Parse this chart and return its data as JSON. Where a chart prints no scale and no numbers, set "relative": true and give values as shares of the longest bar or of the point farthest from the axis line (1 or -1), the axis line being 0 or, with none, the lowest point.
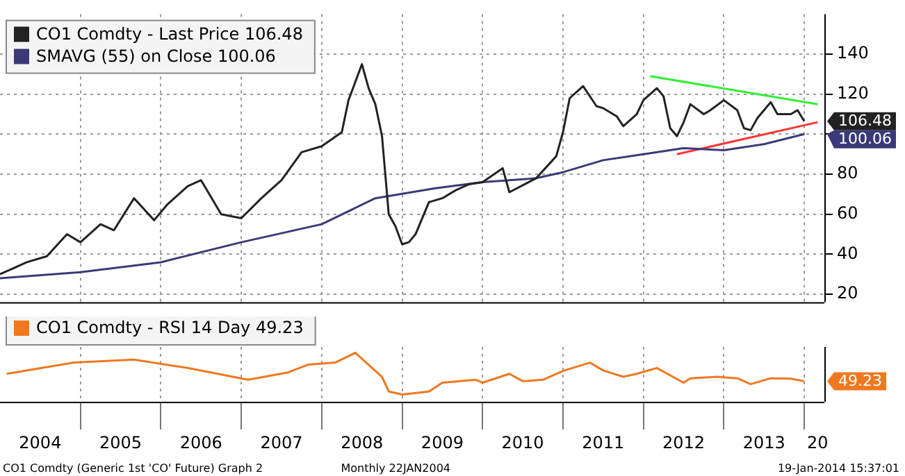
{
  "chart_data": [
    {
      "type": "line",
      "legend": "top left",
      "grid": true,
      "tick_labels": "y",
      "xlim": [
        "2004-01",
        "2014-04"
      ],
      "ylim": [
        16,
        160
      ],
      "xticks": [
        {
          "value": "2005-01",
          "label": null
        },
        {
          "value": "2006-01",
          "label": null
        },
        {
          "value": "2007-01",
          "label": null
        },
        {
          "value": "2008-01",
          "label": null
        },
        {
          "value": "2009-01",
          "label": null
        },
        {
          "value": "2010-01",
          "label": null
        },
        {
          "value": "2011-01",
          "label": null
        },
        {
          "value": "2012-01",
          "label": null
        },
        {
          "value": "2013-01",
          "label": null
        },
        {
          "value": "2014-01",
          "label": null
        }
      ],
      "yticks": [
        20,
        40,
        60,
        80,
        {
          "value": 100,
          "label": null
        },
        120,
        140
      ],
      "series": [
        {
          "name": "CO1 Comdty - Last Price 106.48",
          "color": "#222222",
          "x": [
            "2004-01",
            "2004-03",
            "2004-05",
            "2004-08",
            "2004-11",
            "2005-01",
            "2005-04",
            "2005-06",
            "2005-09",
            "2005-12",
            "2006-02",
            "2006-05",
            "2006-07",
            "2006-10",
            "2007-01",
            "2007-04",
            "2007-07",
            "2007-10",
            "2008-01",
            "2008-04",
            "2008-05",
            "2008-07",
            "2008-08",
            "2008-09",
            "2008-10",
            "2008-11",
            "2008-12",
            "2009-01",
            "2009-02",
            "2009-03",
            "2009-05",
            "2009-07",
            "2009-09",
            "2009-11",
            "2010-01",
            "2010-04",
            "2010-05",
            "2010-09",
            "2010-12",
            "2011-01",
            "2011-02",
            "2011-04",
            "2011-06",
            "2011-07",
            "2011-09",
            "2011-10",
            "2011-12",
            "2012-01",
            "2012-03",
            "2012-04",
            "2012-05",
            "2012-06",
            "2012-07",
            "2012-08",
            "2012-10",
            "2012-11",
            "2013-01",
            "2013-03",
            "2013-04",
            "2013-05",
            "2013-06",
            "2013-08",
            "2013-09",
            "2013-11",
            "2013-12",
            "2014-01"
          ],
          "values": [
            30,
            33,
            36,
            39,
            50,
            46,
            55,
            52,
            68,
            57,
            65,
            74,
            77,
            60,
            58,
            68,
            77,
            91,
            94,
            101,
            117,
            135,
            123,
            115,
            99,
            60,
            54,
            45,
            46,
            50,
            66,
            68,
            72,
            75,
            76,
            83,
            71,
            78,
            89,
            101,
            118,
            124,
            114,
            113,
            109,
            104,
            110,
            117,
            123,
            119,
            103,
            99,
            106,
            115,
            110,
            112,
            117,
            112,
            103,
            102,
            108,
            116,
            110,
            110,
            112,
            106.48
          ]
        },
        {
          "name": "SMAVG (55) on Close 100.06",
          "color": "#3a3a78",
          "x": [
            "2004-01",
            "2005-01",
            "2006-01",
            "2007-01",
            "2008-01",
            "2008-09",
            "2009-06",
            "2010-01",
            "2010-09",
            "2011-01",
            "2011-07",
            "2012-01",
            "2012-07",
            "2013-01",
            "2013-07",
            "2014-01"
          ],
          "values": [
            28,
            31,
            36,
            46,
            55,
            68,
            73,
            76,
            78,
            81,
            87,
            90,
            93,
            92,
            95,
            100.06
          ]
        },
        {
          "color": "#33ee33",
          "x": [
            "2012-02",
            "2014-03"
          ],
          "values": [
            129,
            115
          ]
        },
        {
          "color": "#ff3333",
          "x": [
            "2012-06",
            "2014-03"
          ],
          "values": [
            90,
            106
          ]
        }
      ],
      "annotations": [
        {
          "text": "106.48",
          "x": "2014-01",
          "y": 106.48
        },
        {
          "text": "100.06",
          "x": "2014-01",
          "y": 100.06
        }
      ]
    },
    {
      "type": "line",
      "relative": true,
      "legend": "top",
      "grid": "x",
      "xlim": [
        "2004-01",
        "2014-04"
      ],
      "xticks": [
        {
          "value": "2004-07",
          "label": "2004"
        },
        {
          "value": "2005-01",
          "label": null
        },
        {
          "value": "2005-07",
          "label": "2005"
        },
        {
          "value": "2006-01",
          "label": null
        },
        {
          "value": "2006-07",
          "label": "2006"
        },
        {
          "value": "2007-01",
          "label": null
        },
        {
          "value": "2007-07",
          "label": "2007"
        },
        {
          "value": "2008-01",
          "label": null
        },
        {
          "value": "2008-07",
          "label": "2008"
        },
        {
          "value": "2009-01",
          "label": null
        },
        {
          "value": "2009-07",
          "label": "2009"
        },
        {
          "value": "2010-01",
          "label": null
        },
        {
          "value": "2010-07",
          "label": "2010"
        },
        {
          "value": "2011-01",
          "label": null
        },
        {
          "value": "2011-07",
          "label": "2011"
        },
        {
          "value": "2012-01",
          "label": null
        },
        {
          "value": "2012-07",
          "label": "2012"
        },
        {
          "value": "2013-01",
          "label": null
        },
        {
          "value": "2013-07",
          "label": "2013"
        },
        {
          "value": "2014-01",
          "label": null
        },
        {
          "value": "2014-03",
          "label": "20"
        }
      ],
      "series": [
        {
          "name": "CO1 Comdty - RSI 14 Day 49.23",
          "color": "#f07820",
          "x": [
            "2004-02",
            "2004-12",
            "2005-09",
            "2006-05",
            "2007-02",
            "2007-08",
            "2007-11",
            "2008-03",
            "2008-06",
            "2008-10",
            "2008-11",
            "2009-01",
            "2009-05",
            "2009-07",
            "2009-12",
            "2010-01",
            "2010-05",
            "2010-07",
            "2010-10",
            "2011-01",
            "2011-05",
            "2011-07",
            "2011-10",
            "2011-12",
            "2012-03",
            "2012-07",
            "2012-08",
            "2012-12",
            "2013-03",
            "2013-05",
            "2013-08",
            "2013-11",
            "2014-01"
          ],
          "values": [
            0.57,
            0.8,
            0.86,
            0.69,
            0.45,
            0.6,
            0.76,
            0.8,
            1,
            0.51,
            0.21,
            0.15,
            0.21,
            0.39,
            0.45,
            0.39,
            0.57,
            0.42,
            0.45,
            0.63,
            0.8,
            0.64,
            0.51,
            0.57,
            0.69,
            0.39,
            0.48,
            0.51,
            0.48,
            0.36,
            0.48,
            0.47,
            0.42
          ]
        }
      ],
      "annotations": [
        {
          "text": "49.23",
          "x": "2014-01",
          "y": 0.42
        },
        "CO1 Comdty (Generic 1st 'CO' Future) Graph 2",
        "Monthly 22JAN2004",
        "19-Jan-2014 15:37:01"
      ]
    }
  ]
}
